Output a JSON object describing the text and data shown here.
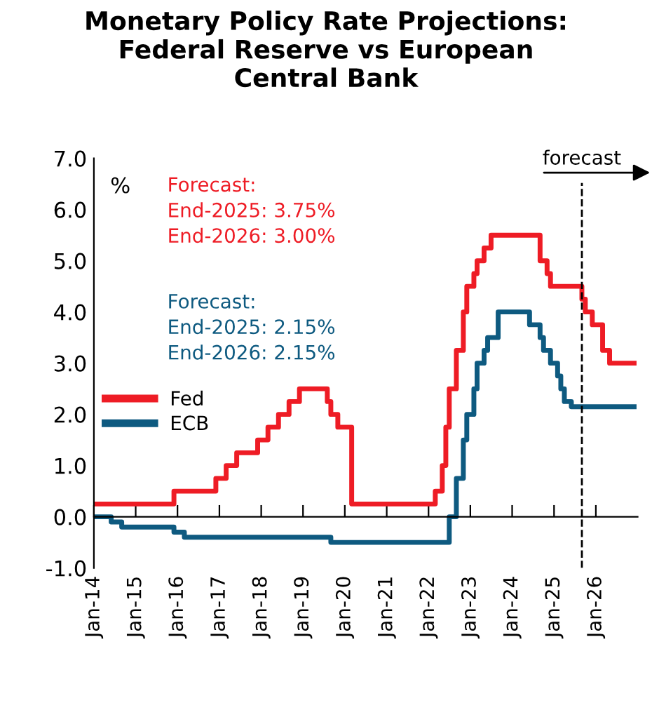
{
  "chart_data": {
    "type": "step",
    "title": "Monetary Policy Rate Projections:\nFederal Reserve vs European\nCentral Bank",
    "ylabel": "%",
    "series": [
      {
        "name": "Fed",
        "color": "#ee1c25",
        "x": [
          "2014-01",
          "2015-12",
          "2016-12",
          "2017-03",
          "2017-06",
          "2017-12",
          "2018-03",
          "2018-06",
          "2018-09",
          "2018-12",
          "2019-08",
          "2019-09",
          "2019-11",
          "2020-03",
          "2022-03",
          "2022-05",
          "2022-06",
          "2022-07",
          "2022-09",
          "2022-11",
          "2022-12",
          "2023-02",
          "2023-03",
          "2023-05",
          "2023-07",
          "2024-09",
          "2024-11",
          "2024-12",
          "2025-09",
          "2025-10",
          "2025-12",
          "2026-03",
          "2026-05",
          "2026-12"
        ],
        "values": [
          0.25,
          0.5,
          0.75,
          1.0,
          1.25,
          1.5,
          1.75,
          2.0,
          2.25,
          2.5,
          2.25,
          2.0,
          1.75,
          0.25,
          0.5,
          1.0,
          1.75,
          2.5,
          3.25,
          4.0,
          4.5,
          4.75,
          5.0,
          5.25,
          5.5,
          5.0,
          4.75,
          4.5,
          4.25,
          4.0,
          3.75,
          3.25,
          3.0,
          3.0
        ]
      },
      {
        "name": "ECB",
        "color": "#0e5a80",
        "x": [
          "2014-01",
          "2014-06",
          "2014-09",
          "2015-12",
          "2016-03",
          "2019-09",
          "2022-07",
          "2022-09",
          "2022-11",
          "2022-12",
          "2023-02",
          "2023-03",
          "2023-05",
          "2023-06",
          "2023-09",
          "2024-06",
          "2024-09",
          "2024-10",
          "2024-12",
          "2025-02",
          "2025-03",
          "2025-04",
          "2025-06",
          "2026-12"
        ],
        "values": [
          0.0,
          -0.1,
          -0.2,
          -0.3,
          -0.4,
          -0.5,
          0.0,
          0.75,
          1.5,
          2.0,
          2.5,
          3.0,
          3.25,
          3.5,
          4.0,
          3.75,
          3.5,
          3.25,
          3.0,
          2.75,
          2.5,
          2.25,
          2.15,
          2.15
        ]
      }
    ],
    "xlim": [
      "2014-01-01",
      "2027-01-01"
    ],
    "xticks": [
      {
        "value": "2014-01-01",
        "label": "Jan-14"
      },
      {
        "value": "2015-01-01",
        "label": "Jan-15"
      },
      {
        "value": "2016-01-01",
        "label": "Jan-16"
      },
      {
        "value": "2017-01-01",
        "label": "Jan-17"
      },
      {
        "value": "2018-01-01",
        "label": "Jan-18"
      },
      {
        "value": "2019-01-01",
        "label": "Jan-19"
      },
      {
        "value": "2020-01-01",
        "label": "Jan-20"
      },
      {
        "value": "2021-01-01",
        "label": "Jan-21"
      },
      {
        "value": "2022-01-01",
        "label": "Jan-22"
      },
      {
        "value": "2023-01-01",
        "label": "Jan-23"
      },
      {
        "value": "2024-01-01",
        "label": "Jan-24"
      },
      {
        "value": "2025-01-01",
        "label": "Jan-25"
      },
      {
        "value": "2026-01-01",
        "label": "Jan-26"
      }
    ],
    "ylim": [
      -1.0,
      7.0
    ],
    "yticks": [
      {
        "value": -1.0,
        "label": "-1.0"
      },
      {
        "value": 0.0,
        "label": "0.0"
      },
      {
        "value": 1.0,
        "label": "1.0"
      },
      {
        "value": 2.0,
        "label": "2.0"
      },
      {
        "value": 3.0,
        "label": "3.0"
      },
      {
        "value": 4.0,
        "label": "4.0"
      },
      {
        "value": 5.0,
        "label": "5.0"
      },
      {
        "value": 6.0,
        "label": "6.0"
      },
      {
        "value": 7.0,
        "label": "7.0"
      }
    ],
    "ref_lines": [
      {
        "axis": "x",
        "value": "2025-09-01",
        "label": "forecast",
        "color": "#000000",
        "line_style": "dashed"
      }
    ],
    "annotations": [
      "Forecast:\nEnd-2025: 3.75%\nEnd-2026: 3.00%",
      "Forecast:\nEnd-2025: 2.15%\nEnd-2026: 2.15%"
    ],
    "legend": "left",
    "line_style": "solid",
    "marker": "none"
  }
}
